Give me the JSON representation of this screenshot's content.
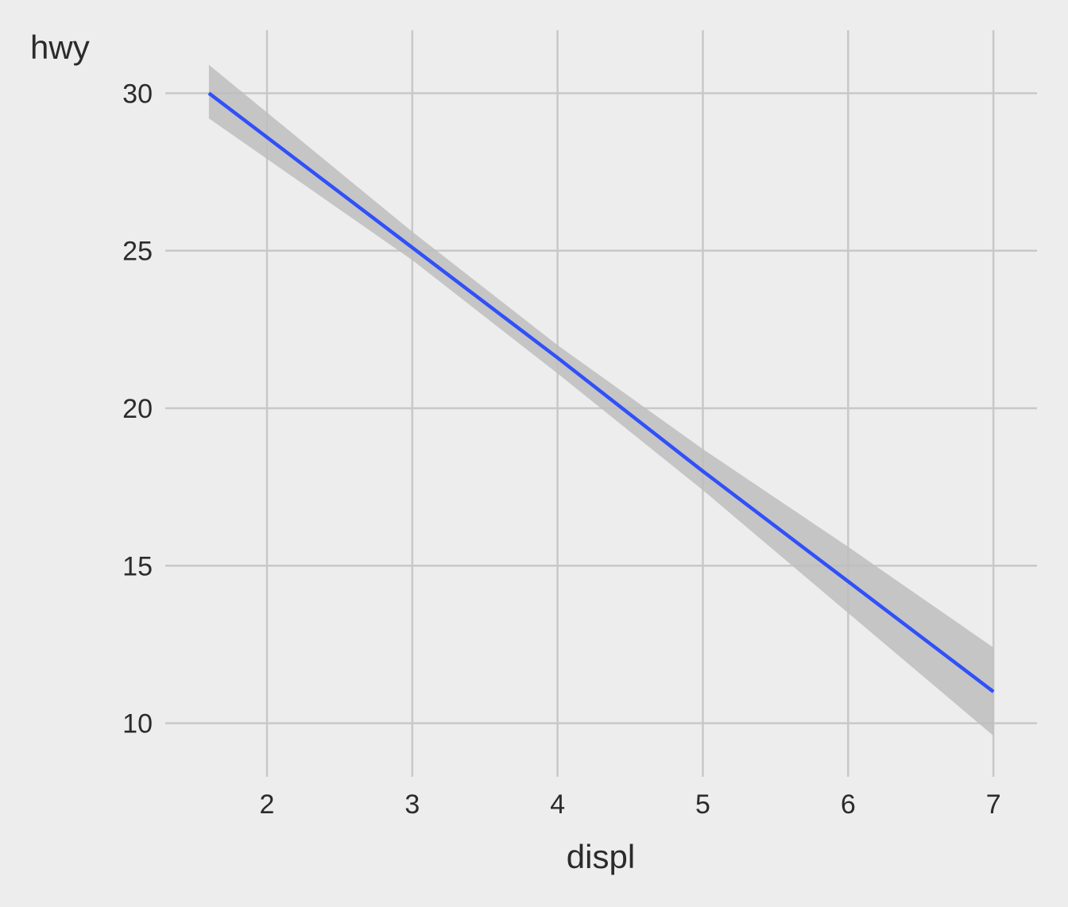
{
  "chart_data": {
    "type": "line",
    "title": "",
    "xlabel": "displ",
    "ylabel": "hwy",
    "xlim": [
      1.3,
      7.3
    ],
    "ylim": [
      8.3,
      32
    ],
    "x_ticks": [
      2,
      3,
      4,
      5,
      6,
      7
    ],
    "y_ticks": [
      10,
      15,
      20,
      25,
      30
    ],
    "grid": true,
    "legend": "none",
    "series": [
      {
        "x": [
          1.6,
          3.0,
          4.0,
          5.0,
          6.0,
          7.0
        ],
        "y": [
          30.0,
          25.1,
          21.6,
          18.0,
          14.5,
          11.0
        ],
        "color": "#3050f8"
      }
    ],
    "confidence_band": {
      "x": [
        1.6,
        3.0,
        4.0,
        5.0,
        6.0,
        7.0
      ],
      "lower": [
        29.2,
        24.7,
        21.1,
        17.4,
        13.5,
        9.6
      ],
      "upper": [
        30.9,
        25.6,
        22.0,
        18.7,
        15.6,
        12.4
      ],
      "color": "#bdbdbd"
    },
    "colors": {
      "background": "#ededed",
      "grid": "#c8c8c8",
      "text": "#2b2b2b"
    }
  }
}
